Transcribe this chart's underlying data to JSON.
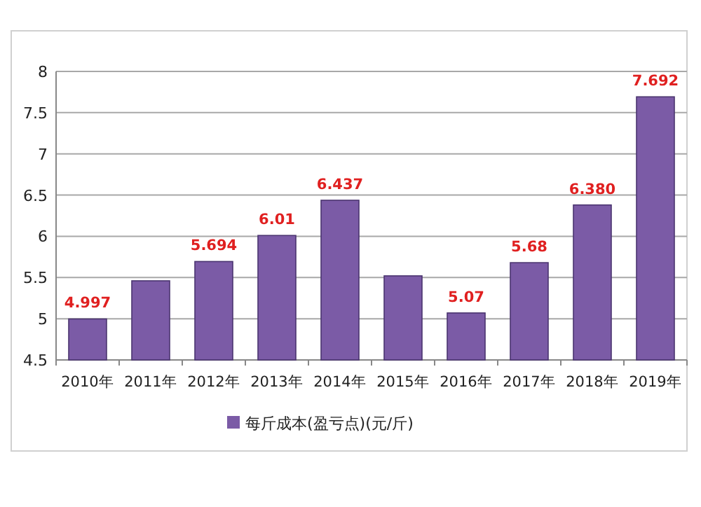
{
  "chart_data": {
    "type": "bar",
    "categories": [
      "2010年",
      "2011年",
      "2012年",
      "2013年",
      "2014年",
      "2015年",
      "2016年",
      "2017年",
      "2018年",
      "2019年"
    ],
    "series": [
      {
        "name": "每斤成本(盈亏点)(元/斤)",
        "color": "#7b5ba6",
        "values": [
          4.997,
          5.46,
          5.694,
          6.01,
          6.437,
          5.52,
          5.07,
          5.68,
          6.38,
          7.692
        ],
        "value_labels": [
          "4.997",
          null,
          "5.694",
          "6.01",
          "6.437",
          null,
          "5.07",
          "5.68",
          "6.380",
          "7.692"
        ]
      }
    ],
    "ylim": [
      4.5,
      8
    ],
    "yticks": [
      4.5,
      5,
      5.5,
      6,
      6.5,
      7,
      7.5,
      8
    ],
    "grid": "y",
    "legend": "bottom"
  }
}
